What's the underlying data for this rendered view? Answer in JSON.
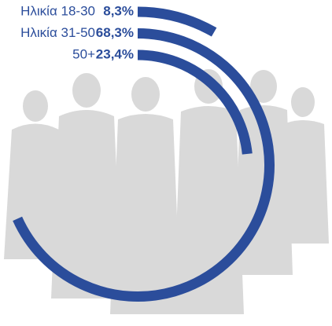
{
  "chart_data": {
    "type": "radial_bar",
    "categories": [
      "Ηλικία 18-30",
      "Ηλικία 31-50",
      "50+"
    ],
    "values": [
      8.3,
      68.3,
      23.4
    ],
    "value_labels": [
      "8,3%",
      "68,3%",
      "23,4%"
    ],
    "color": "#2b4d9b"
  }
}
